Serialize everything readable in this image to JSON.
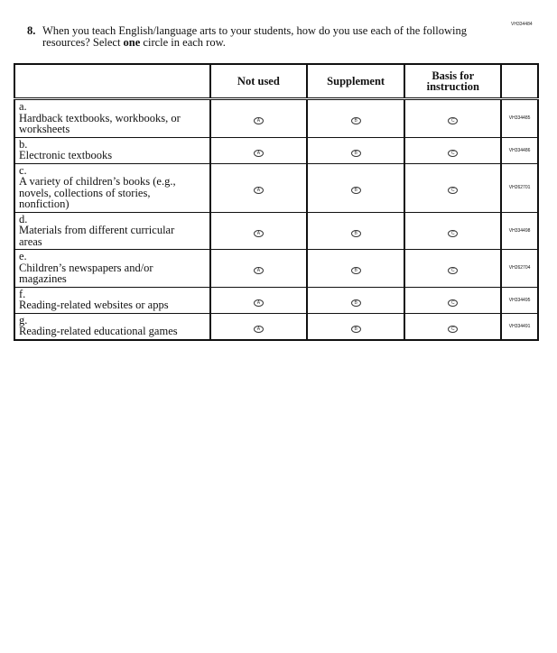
{
  "item_code": "VH334484",
  "question": {
    "number": "8.",
    "text_before": "When you teach English/language arts to your students, how do you use each of the following resources? Select ",
    "emphasis": "one",
    "text_after": " circle in each row."
  },
  "columns": [
    "Not used",
    "Supplement",
    "Basis for instruction"
  ],
  "bubble_letters": [
    "A",
    "B",
    "C"
  ],
  "rows": [
    {
      "letter": "a.",
      "label": "Hardback textbooks, workbooks, or worksheets",
      "code": "VH334485"
    },
    {
      "letter": "b.",
      "label": "Electronic textbooks",
      "code": "VH334486"
    },
    {
      "letter": "c.",
      "label": "A variety of children’s books (e.g., novels, collections of stories, nonfiction)",
      "code": "VH262701"
    },
    {
      "letter": "d.",
      "label": "Materials from different curricular areas",
      "code": "VH334498"
    },
    {
      "letter": "e.",
      "label": "Children’s newspapers and/or magazines",
      "code": "VH262704"
    },
    {
      "letter": "f.",
      "label": "Reading-related websites or apps",
      "code": "VH334495"
    },
    {
      "letter": "g.",
      "label": "Reading-related educational games",
      "code": "VH334491"
    }
  ]
}
